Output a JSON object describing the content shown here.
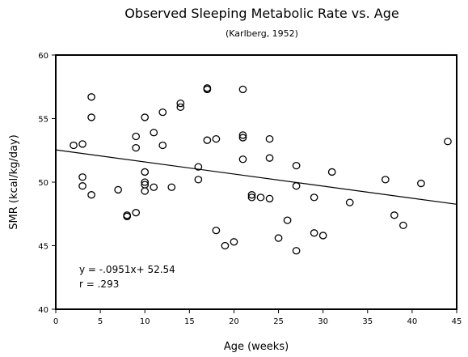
{
  "chart_data": {
    "type": "scatter",
    "title": "Observed Sleeping Metabolic Rate vs. Age",
    "subtitle": "(Karlberg, 1952)",
    "xlabel": "Age (weeks)",
    "ylabel": "SMR (kcal/kg/day)",
    "xlim": [
      0,
      45
    ],
    "ylim": [
      40,
      60
    ],
    "x_ticks": [
      0,
      5,
      10,
      15,
      20,
      25,
      30,
      35,
      40,
      45
    ],
    "y_ticks": [
      40,
      45,
      50,
      55,
      60
    ],
    "grid": false,
    "points": [
      [
        2,
        52.9
      ],
      [
        3,
        53.0
      ],
      [
        3,
        50.4
      ],
      [
        3,
        49.7
      ],
      [
        4,
        56.7
      ],
      [
        4,
        55.1
      ],
      [
        4,
        49.0
      ],
      [
        7,
        49.4
      ],
      [
        8,
        47.4
      ],
      [
        8,
        47.3
      ],
      [
        9,
        47.6
      ],
      [
        9,
        53.6
      ],
      [
        9,
        52.7
      ],
      [
        10,
        55.1
      ],
      [
        10,
        50.8
      ],
      [
        10,
        50.0
      ],
      [
        10,
        49.8
      ],
      [
        10,
        49.3
      ],
      [
        11,
        53.9
      ],
      [
        11,
        49.6
      ],
      [
        12,
        55.5
      ],
      [
        12,
        52.9
      ],
      [
        13,
        49.6
      ],
      [
        14,
        56.2
      ],
      [
        14,
        55.9
      ],
      [
        16,
        51.2
      ],
      [
        16,
        50.2
      ],
      [
        17,
        57.4
      ],
      [
        17,
        57.3
      ],
      [
        17,
        53.3
      ],
      [
        18,
        53.4
      ],
      [
        18,
        46.2
      ],
      [
        19,
        45.0
      ],
      [
        20,
        45.3
      ],
      [
        21,
        57.3
      ],
      [
        21,
        53.7
      ],
      [
        21,
        53.5
      ],
      [
        21,
        51.8
      ],
      [
        22,
        49.0
      ],
      [
        22,
        48.8
      ],
      [
        23,
        48.8
      ],
      [
        24,
        53.4
      ],
      [
        24,
        51.9
      ],
      [
        24,
        48.7
      ],
      [
        25,
        45.6
      ],
      [
        26,
        47.0
      ],
      [
        27,
        51.3
      ],
      [
        27,
        49.7
      ],
      [
        27,
        44.6
      ],
      [
        29,
        48.8
      ],
      [
        29,
        46.0
      ],
      [
        30,
        45.8
      ],
      [
        31,
        50.8
      ],
      [
        33,
        48.4
      ],
      [
        37,
        50.2
      ],
      [
        38,
        47.4
      ],
      [
        39,
        46.6
      ],
      [
        41,
        49.9
      ],
      [
        44,
        53.2
      ]
    ],
    "regression": {
      "slope": -0.0951,
      "intercept": 52.54
    },
    "annotations": [
      "y = -.0951x+ 52.54",
      "r = .293"
    ]
  }
}
